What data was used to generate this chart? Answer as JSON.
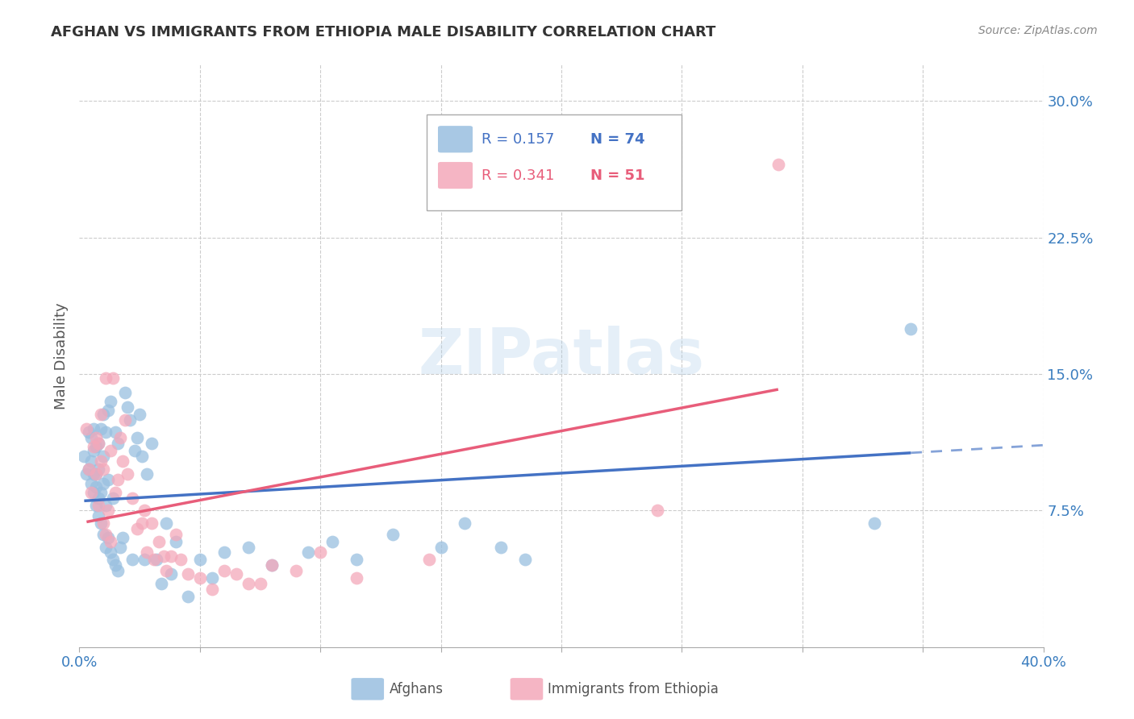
{
  "title": "AFGHAN VS IMMIGRANTS FROM ETHIOPIA MALE DISABILITY CORRELATION CHART",
  "source": "Source: ZipAtlas.com",
  "ylabel": "Male Disability",
  "xlim": [
    0.0,
    0.4
  ],
  "ylim": [
    0.0,
    0.32
  ],
  "ytick_positions": [
    0.075,
    0.15,
    0.225,
    0.3
  ],
  "ytick_labels": [
    "7.5%",
    "15.0%",
    "22.5%",
    "30.0%"
  ],
  "blue_color": "#99bfe0",
  "pink_color": "#f4a8ba",
  "blue_line_color": "#4472c4",
  "pink_line_color": "#e85d7a",
  "blue_r": 0.157,
  "blue_n": 74,
  "pink_r": 0.341,
  "pink_n": 51,
  "watermark": "ZIPatlas",
  "background_color": "#ffffff",
  "grid_color": "#cccccc",
  "blue_x": [
    0.002,
    0.003,
    0.004,
    0.004,
    0.005,
    0.005,
    0.005,
    0.006,
    0.006,
    0.006,
    0.006,
    0.007,
    0.007,
    0.007,
    0.007,
    0.008,
    0.008,
    0.008,
    0.008,
    0.009,
    0.009,
    0.009,
    0.01,
    0.01,
    0.01,
    0.01,
    0.011,
    0.011,
    0.011,
    0.012,
    0.012,
    0.012,
    0.013,
    0.013,
    0.014,
    0.014,
    0.015,
    0.015,
    0.016,
    0.016,
    0.017,
    0.018,
    0.019,
    0.02,
    0.021,
    0.022,
    0.023,
    0.024,
    0.025,
    0.026,
    0.027,
    0.028,
    0.03,
    0.032,
    0.034,
    0.036,
    0.038,
    0.04,
    0.045,
    0.05,
    0.055,
    0.06,
    0.07,
    0.08,
    0.095,
    0.105,
    0.115,
    0.13,
    0.15,
    0.16,
    0.175,
    0.185,
    0.33,
    0.345
  ],
  "blue_y": [
    0.105,
    0.095,
    0.118,
    0.098,
    0.09,
    0.102,
    0.115,
    0.085,
    0.095,
    0.108,
    0.12,
    0.078,
    0.088,
    0.095,
    0.11,
    0.072,
    0.082,
    0.098,
    0.112,
    0.068,
    0.085,
    0.12,
    0.062,
    0.09,
    0.105,
    0.128,
    0.055,
    0.078,
    0.118,
    0.06,
    0.092,
    0.13,
    0.052,
    0.135,
    0.048,
    0.082,
    0.045,
    0.118,
    0.042,
    0.112,
    0.055,
    0.06,
    0.14,
    0.132,
    0.125,
    0.048,
    0.108,
    0.115,
    0.128,
    0.105,
    0.048,
    0.095,
    0.112,
    0.048,
    0.035,
    0.068,
    0.04,
    0.058,
    0.028,
    0.048,
    0.038,
    0.052,
    0.055,
    0.045,
    0.052,
    0.058,
    0.048,
    0.062,
    0.055,
    0.068,
    0.055,
    0.048,
    0.068,
    0.175
  ],
  "pink_x": [
    0.003,
    0.004,
    0.005,
    0.006,
    0.007,
    0.007,
    0.008,
    0.008,
    0.009,
    0.009,
    0.01,
    0.01,
    0.011,
    0.011,
    0.012,
    0.013,
    0.013,
    0.014,
    0.015,
    0.016,
    0.017,
    0.018,
    0.019,
    0.02,
    0.022,
    0.024,
    0.026,
    0.027,
    0.028,
    0.03,
    0.031,
    0.033,
    0.035,
    0.036,
    0.038,
    0.04,
    0.042,
    0.045,
    0.05,
    0.055,
    0.06,
    0.065,
    0.07,
    0.075,
    0.08,
    0.09,
    0.1,
    0.115,
    0.145,
    0.24,
    0.29
  ],
  "pink_y": [
    0.12,
    0.098,
    0.085,
    0.11,
    0.095,
    0.115,
    0.078,
    0.112,
    0.102,
    0.128,
    0.068,
    0.098,
    0.062,
    0.148,
    0.075,
    0.058,
    0.108,
    0.148,
    0.085,
    0.092,
    0.115,
    0.102,
    0.125,
    0.095,
    0.082,
    0.065,
    0.068,
    0.075,
    0.052,
    0.068,
    0.048,
    0.058,
    0.05,
    0.042,
    0.05,
    0.062,
    0.048,
    0.04,
    0.038,
    0.032,
    0.042,
    0.04,
    0.035,
    0.035,
    0.045,
    0.042,
    0.052,
    0.038,
    0.048,
    0.075,
    0.265
  ]
}
